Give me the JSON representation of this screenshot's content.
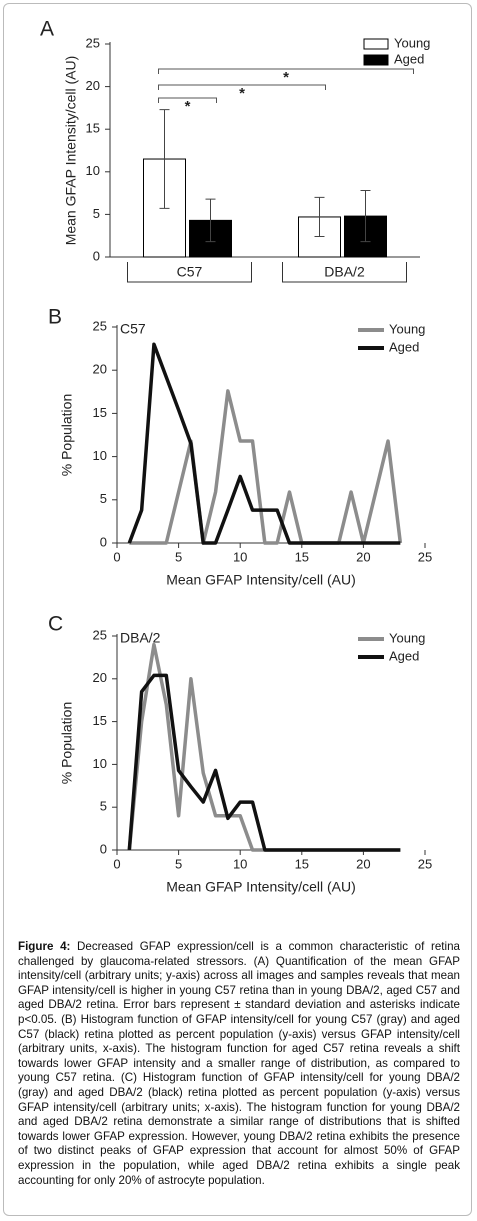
{
  "chart_data": [
    {
      "type": "bar",
      "label": "A",
      "ylabel": "Mean GFAP Intensity/cell (AU)",
      "categories": [
        "C57",
        "DBA/2"
      ],
      "series": [
        {
          "name": "Young",
          "color": "#ffffff",
          "values": [
            11.5,
            4.7
          ],
          "errors": [
            5.8,
            2.3
          ]
        },
        {
          "name": "Aged",
          "color": "#000000",
          "values": [
            4.3,
            4.8
          ],
          "errors": [
            2.5,
            3.0
          ]
        }
      ],
      "ylim": [
        0,
        25
      ],
      "yticks": [
        0,
        5,
        10,
        15,
        20,
        25
      ],
      "annotations": [
        "*",
        "*",
        "*"
      ]
    },
    {
      "type": "line",
      "label": "B",
      "subtitle": "C57",
      "xlabel": "Mean GFAP Intensity/cell (AU)",
      "ylabel": "% Population",
      "x": [
        1,
        2,
        3,
        4,
        5,
        6,
        7,
        8,
        9,
        10,
        11,
        12,
        13,
        14,
        15,
        16,
        17,
        18,
        19,
        20,
        21,
        22,
        23
      ],
      "series": [
        {
          "name": "Young",
          "color": "#8c8c8c",
          "values": [
            0,
            0,
            0,
            0,
            5.9,
            11.8,
            0,
            5.9,
            17.6,
            11.8,
            11.8,
            0,
            0,
            5.9,
            0,
            0,
            0,
            0,
            5.9,
            0,
            5.9,
            11.8,
            0
          ]
        },
        {
          "name": "Aged",
          "color": "#111111",
          "values": [
            0,
            3.8,
            23,
            19.2,
            15.4,
            11.5,
            0,
            0,
            3.8,
            7.7,
            3.8,
            3.8,
            3.8,
            0,
            0,
            0,
            0,
            0,
            0,
            0,
            0,
            0,
            0
          ]
        }
      ],
      "xlim": [
        0,
        25
      ],
      "xticks": [
        0,
        5,
        10,
        15,
        20,
        25
      ],
      "ylim": [
        0,
        25
      ],
      "yticks": [
        0,
        5,
        10,
        15,
        20,
        25
      ]
    },
    {
      "type": "line",
      "label": "C",
      "subtitle": "DBA/2",
      "xlabel": "Mean GFAP Intensity/cell (AU)",
      "ylabel": "% Population",
      "x": [
        1,
        2,
        3,
        4,
        5,
        6,
        7,
        8,
        9,
        10,
        11,
        12,
        13,
        14,
        15,
        16,
        17,
        18,
        19,
        20,
        21,
        22,
        23
      ],
      "series": [
        {
          "name": "Young",
          "color": "#8c8c8c",
          "values": [
            0,
            15,
            24,
            17,
            4,
            20,
            9,
            4,
            4,
            4,
            0,
            0,
            0,
            0,
            0,
            0,
            0,
            0,
            0,
            0,
            0,
            0,
            0
          ]
        },
        {
          "name": "Aged",
          "color": "#111111",
          "values": [
            0,
            18.5,
            20.4,
            20.4,
            9.3,
            7.4,
            5.6,
            9.3,
            3.7,
            5.6,
            5.6,
            0,
            0,
            0,
            0,
            0,
            0,
            0,
            0,
            0,
            0,
            0,
            0
          ]
        }
      ],
      "xlim": [
        0,
        25
      ],
      "xticks": [
        0,
        5,
        10,
        15,
        20,
        25
      ],
      "ylim": [
        0,
        25
      ],
      "yticks": [
        0,
        5,
        10,
        15,
        20,
        25
      ]
    }
  ],
  "caption": {
    "label": "Figure 4:",
    "text": "Decreased GFAP expression/cell is a common characteristic of retina challenged by glaucoma-related stressors. (A) Quantification of the mean GFAP intensity/cell (arbitrary units; y-axis) across all images and samples reveals that mean GFAP intensity/cell is higher in young C57 retina than in young DBA/2, aged C57 and aged DBA/2 retina. Error bars represent ± standard deviation and asterisks indicate p<0.05. (B) Histogram function of GFAP intensity/cell for young C57 (gray) and aged C57 (black) retina plotted as percent population (y-axis) versus GFAP intensity/cell (arbitrary units, x-axis). The histogram function for aged C57 retina reveals a shift towards lower GFAP intensity and a smaller range of distribution, as compared to young C57 retina. (C) Histogram function of GFAP intensity/cell for young DBA/2 (gray) and aged DBA/2 (black) retina plotted as percent population (y-axis) versus GFAP intensity/cell (arbitrary units; x-axis). The histogram function for young DBA/2 and aged DBA/2 retina demonstrate a similar range of distributions that is shifted towards lower GFAP expression. However, young DBA/2 retina exhibits the presence of two distinct peaks of GFAP expression that account for almost 50% of GFAP expression in the population, while aged DBA/2 retina exhibits a single peak accounting for only 20% of astrocyte population."
  }
}
